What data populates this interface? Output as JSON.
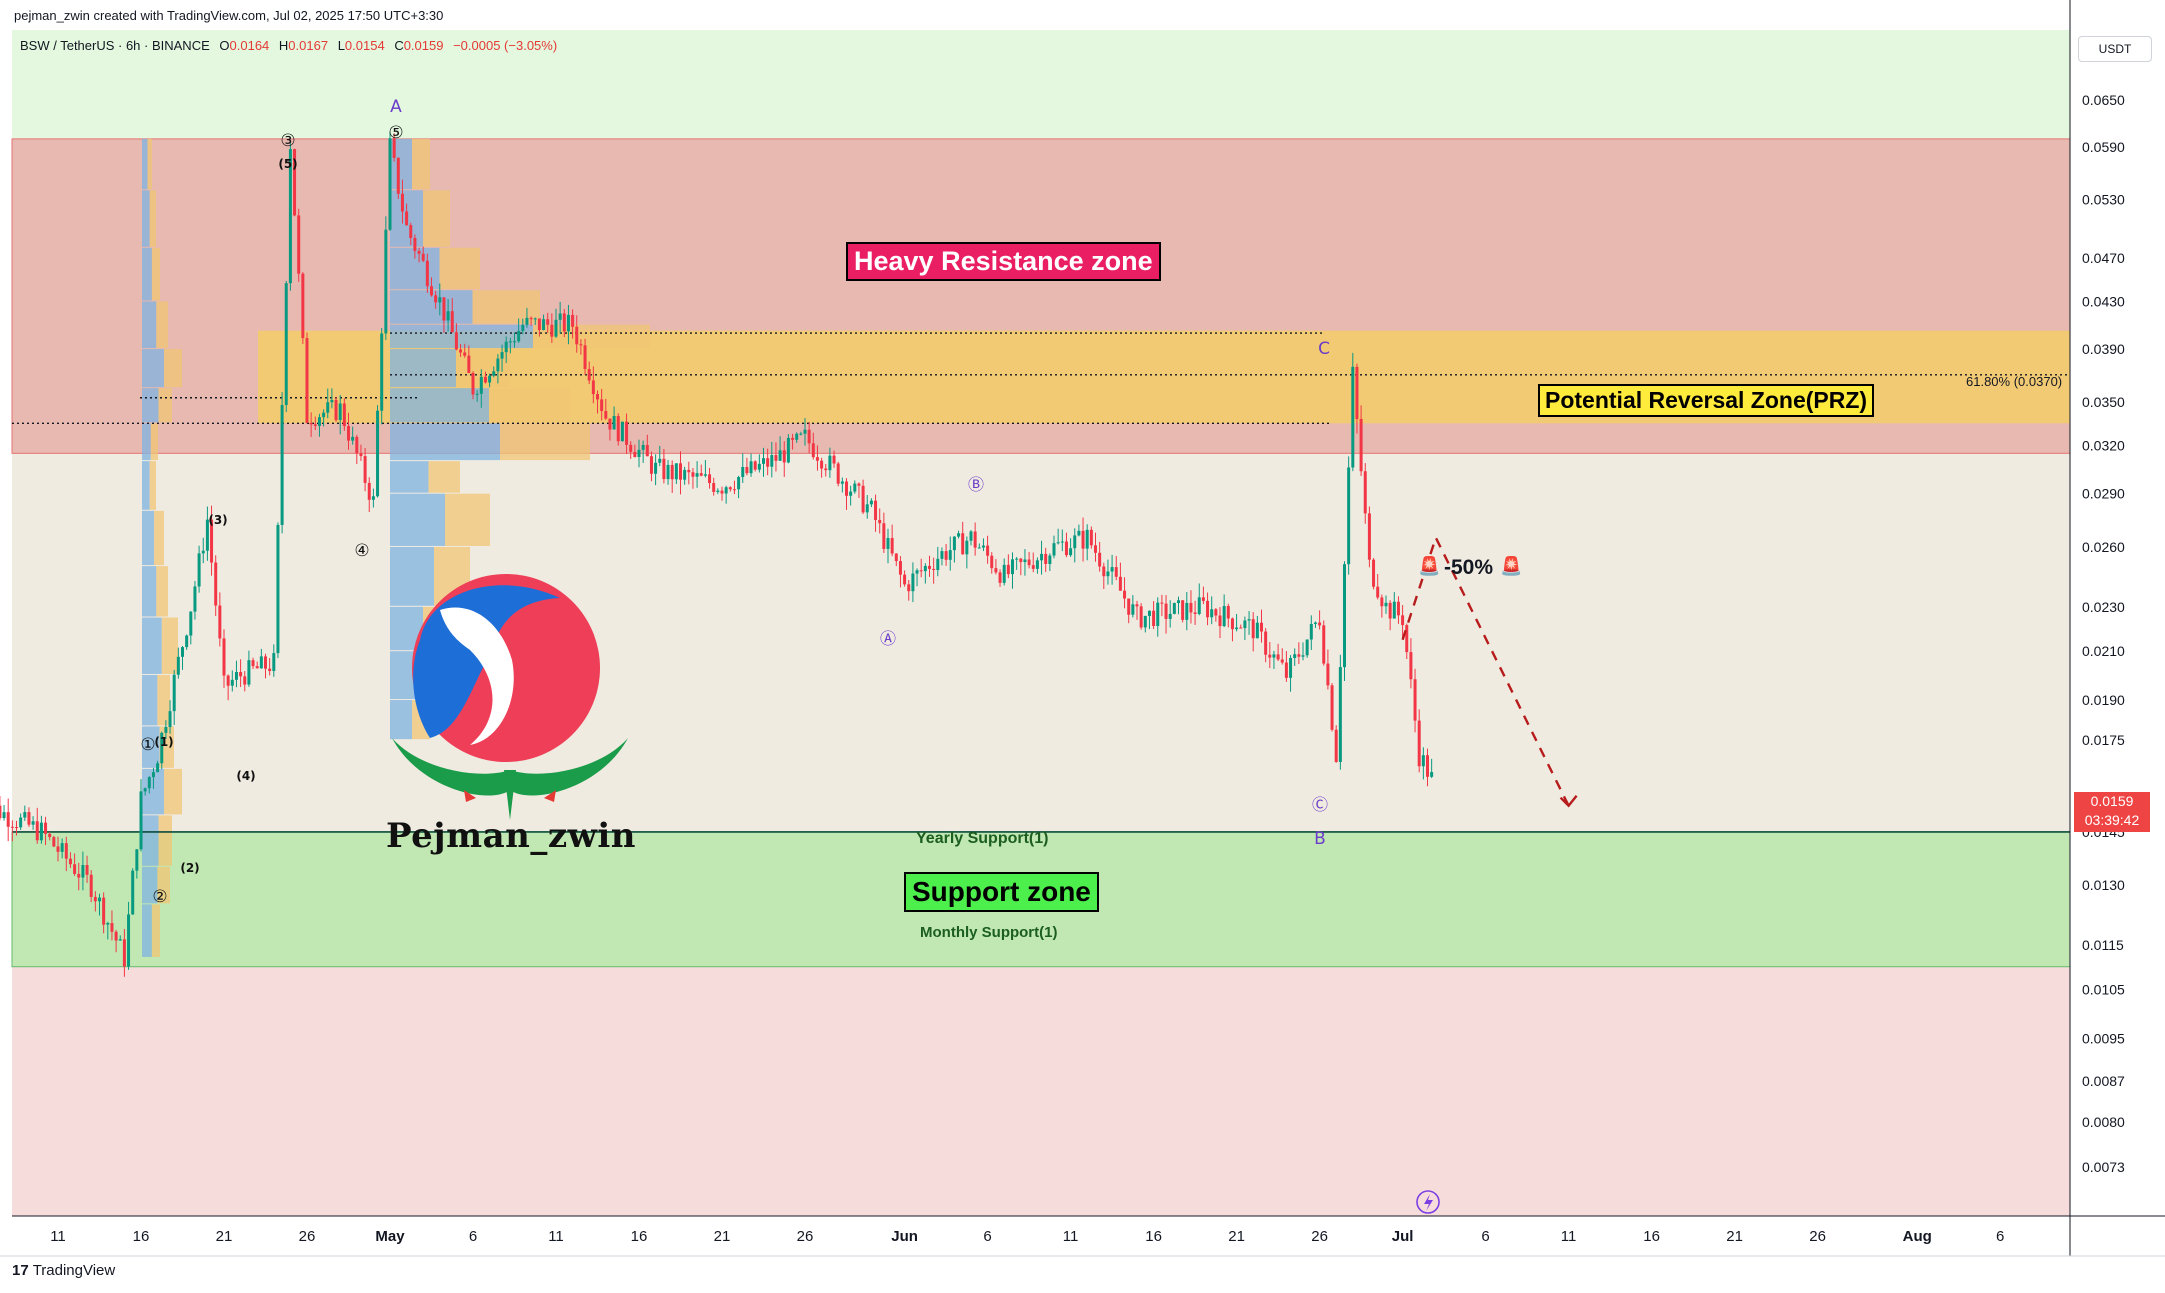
{
  "header": {
    "credit": "pejman_zwin created with TradingView.com, Jul 02, 2025 17:50 UTC+3:30",
    "symbol": "BSW / TetherUS · 6h · BINANCE",
    "open_label": "O",
    "open": "0.0164",
    "high_label": "H",
    "high": "0.0167",
    "low_label": "L",
    "low": "0.0154",
    "close_label": "C",
    "close": "0.0159",
    "change": "−0.0005 (−3.05%)"
  },
  "annotations": {
    "resistance": "Heavy Resistance zone",
    "support": "Support zone",
    "prz": "Potential Reversal Zone(PRZ)",
    "yearly_support": "Yearly Support(1)",
    "monthly_support": "Monthly Support(1)",
    "fib": "61.80% (0.0370)",
    "target": "-50%",
    "logo_text": "Pejman_zwin"
  },
  "wave_labels": [
    "A",
    "⑤",
    "③",
    "(5)",
    "(3)",
    "④",
    "(4)",
    "①",
    "(1)",
    "②",
    "(2)",
    "Ⓐ",
    "Ⓑ",
    "C",
    "Ⓒ",
    "B"
  ],
  "price_axis": {
    "currency": "USDT",
    "current_price": "0.0159",
    "countdown": "03:39:42",
    "ticks": [
      "0.0650",
      "0.0590",
      "0.0530",
      "0.0470",
      "0.0430",
      "0.0390",
      "0.0350",
      "0.0320",
      "0.0290",
      "0.0260",
      "0.0230",
      "0.0210",
      "0.0190",
      "0.0175",
      "0.0159",
      "0.0145",
      "0.0130",
      "0.0115",
      "0.0105",
      "0.0095",
      "0.0087",
      "0.0080",
      "0.0073"
    ]
  },
  "time_axis": {
    "ticks": [
      "11",
      "16",
      "21",
      "26",
      "May",
      "6",
      "11",
      "16",
      "21",
      "26",
      "Jun",
      "6",
      "11",
      "16",
      "21",
      "26",
      "Jul",
      "6",
      "11",
      "16",
      "21",
      "26",
      "Aug",
      "6"
    ]
  },
  "footer": {
    "brand": "TradingView"
  },
  "colors": {
    "resistance_zone": "#e8b9b0",
    "prz_zone": "#f5cc6a",
    "support_zone": "#c1e8b3",
    "lower_area": "#f7dcdc",
    "upper_area": "#e3f8df",
    "mid_area": "#f0ebe1",
    "candle_up": "#089981",
    "candle_down": "#f23645",
    "forecast": "#b71c1c"
  },
  "chart_data": {
    "type": "candlestick",
    "symbol": "BSW / TetherUS",
    "interval": "6h",
    "exchange": "BINANCE",
    "scale": "log",
    "ylim": [
      0.0066,
      0.075
    ],
    "zones": [
      {
        "name": "Heavy Resistance zone",
        "from": 0.0315,
        "to": 0.06
      },
      {
        "name": "Potential Reversal Zone(PRZ)",
        "from": 0.0335,
        "to": 0.0405
      },
      {
        "name": "Support zone",
        "from": 0.011,
        "to": 0.0145
      }
    ],
    "levels": [
      {
        "name": "Yearly Support(1)",
        "price": 0.0145
      },
      {
        "name": "Monthly Support(1)",
        "price": 0.0122
      },
      {
        "name": "61.80% (0.0370)",
        "price": 0.037
      },
      {
        "price": 0.0403
      },
      {
        "price": 0.0335
      },
      {
        "price": 0.0353
      }
    ],
    "path_points": [
      [
        "Apr 6",
        0.0155
      ],
      [
        "Apr 10",
        0.0145
      ],
      [
        "Apr 13",
        0.013
      ],
      [
        "Apr 15",
        0.0112
      ],
      [
        "Apr 16",
        0.0155
      ],
      [
        "Apr 17",
        0.017
      ],
      [
        "Apr 19",
        0.023
      ],
      [
        "Apr 20",
        0.0275
      ],
      [
        "Apr 21",
        0.0195
      ],
      [
        "Apr 22",
        0.02
      ],
      [
        "Apr 24",
        0.0205
      ],
      [
        "Apr 25",
        0.0595
      ],
      [
        "Apr 26",
        0.034
      ],
      [
        "Apr 28",
        0.0345
      ],
      [
        "Apr 30",
        0.0285
      ],
      [
        "May 1",
        0.059
      ],
      [
        "May 2",
        0.05
      ],
      [
        "May 4",
        0.043
      ],
      [
        "May 6",
        0.036
      ],
      [
        "May 9",
        0.041
      ],
      [
        "May 12",
        0.041
      ],
      [
        "May 14",
        0.034
      ],
      [
        "May 17",
        0.0305
      ],
      [
        "May 21",
        0.0295
      ],
      [
        "May 24",
        0.031
      ],
      [
        "May 26",
        0.0325
      ],
      [
        "May 30",
        0.028
      ],
      [
        "Jun 1",
        0.024
      ],
      [
        "Jun 3",
        0.0255
      ],
      [
        "Jun 5",
        0.0265
      ],
      [
        "Jun 7",
        0.0245
      ],
      [
        "Jun 10",
        0.026
      ],
      [
        "Jun 12",
        0.0265
      ],
      [
        "Jun 15",
        0.0225
      ],
      [
        "Jun 19",
        0.023
      ],
      [
        "Jun 22",
        0.022
      ],
      [
        "Jun 24",
        0.02
      ],
      [
        "Jun 26",
        0.0225
      ],
      [
        "Jun 27",
        0.017
      ],
      [
        "Jun 28",
        0.037
      ],
      [
        "Jun 29",
        0.025
      ],
      [
        "Jun 30",
        0.023
      ],
      [
        "Jul 1",
        0.0225
      ],
      [
        "Jul 2",
        0.017
      ],
      [
        "Jul 3",
        0.0159
      ]
    ],
    "forecast": [
      [
        "Jul 1",
        0.0215
      ],
      [
        "Jul 3",
        0.0265
      ],
      [
        "Jul 11",
        0.0153
      ]
    ]
  }
}
